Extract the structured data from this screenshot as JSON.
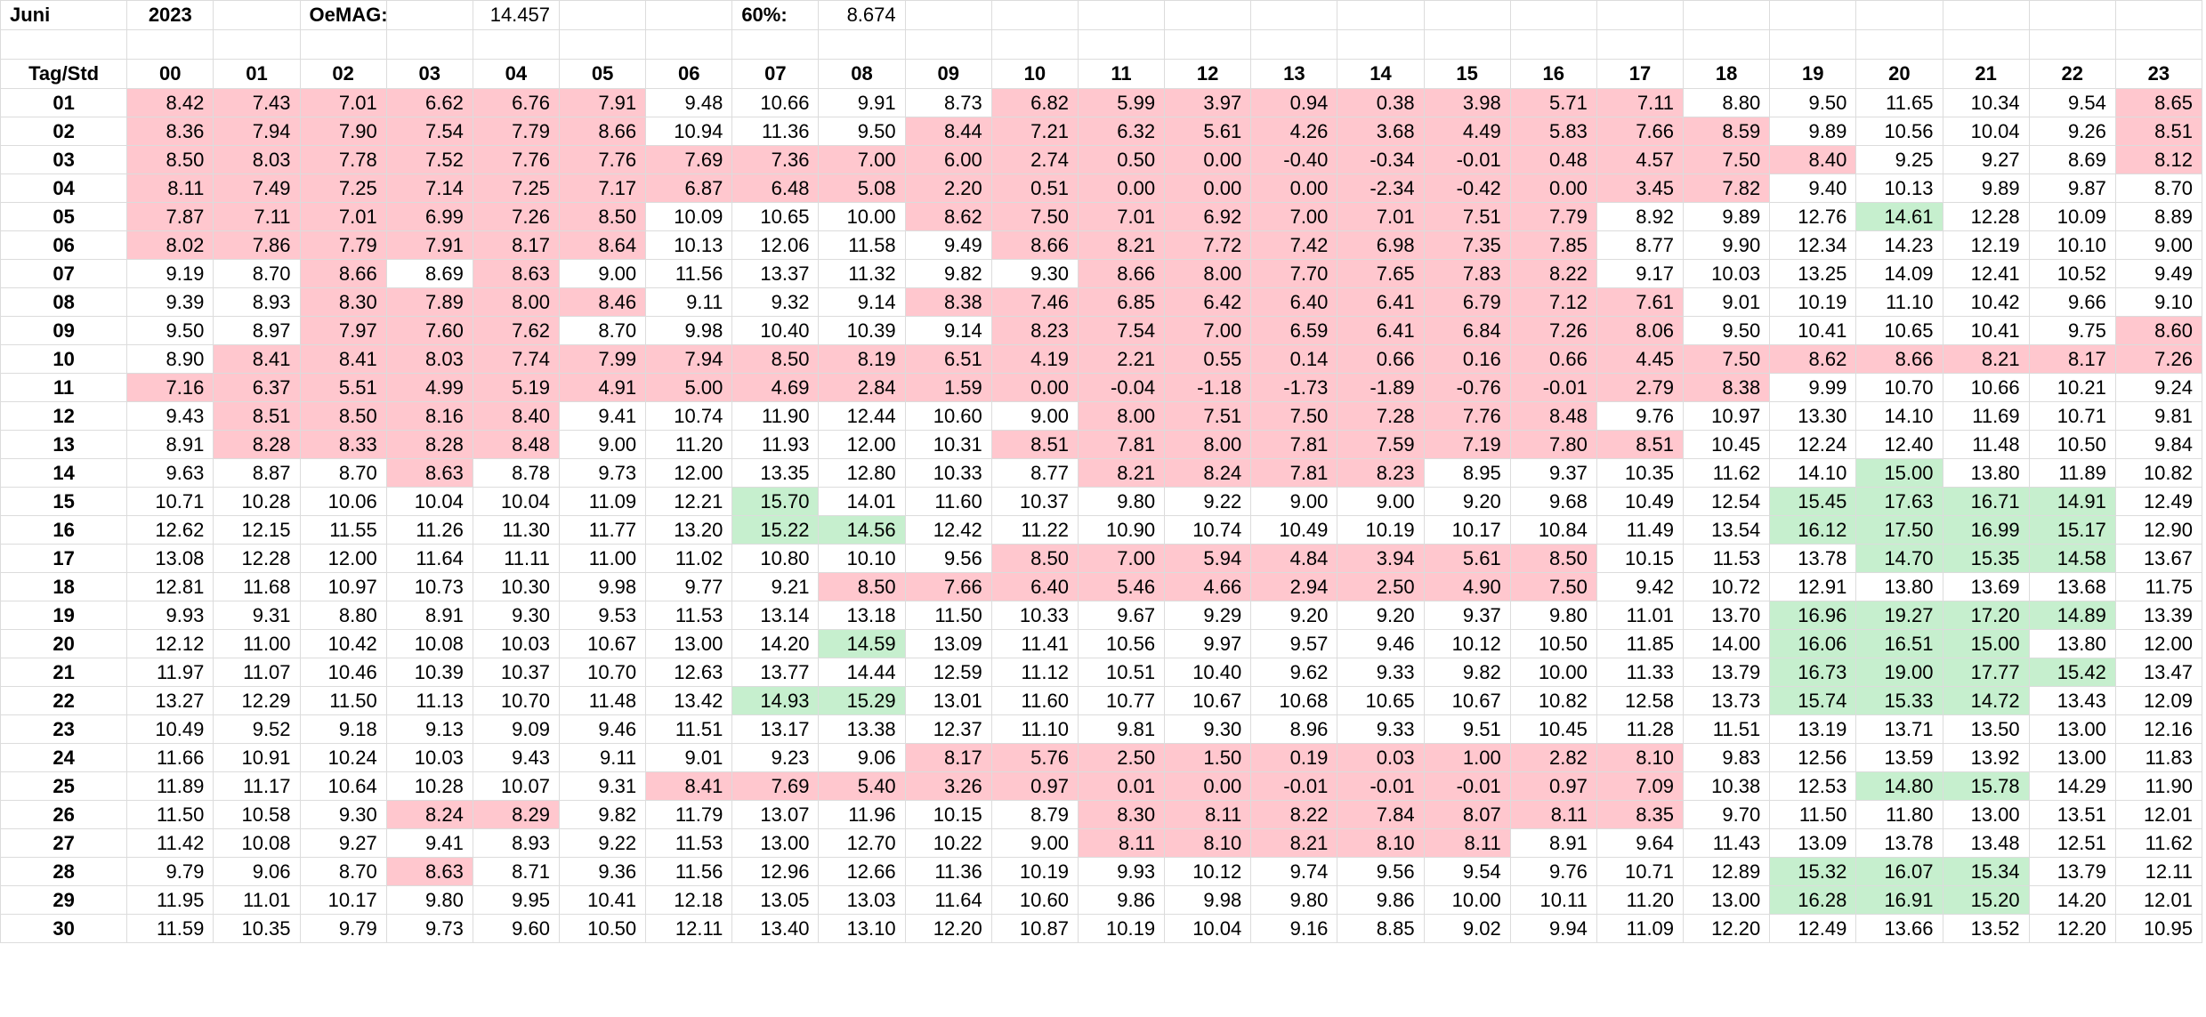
{
  "header": {
    "month": "Juni",
    "year": "2023",
    "oemag_label": "OeMAG:",
    "oemag_value": "14.457",
    "pct_label": "60%:",
    "pct_value": "8.674"
  },
  "colors": {
    "low_fill": "#ffc7ce",
    "low_text": "#9c0006",
    "high_fill": "#c6efce",
    "high_text": "#006100",
    "header_blue": "#1f6fbf",
    "title_red": "#e00000"
  },
  "corner_label": "Tag/Std",
  "hours": [
    "00",
    "01",
    "02",
    "03",
    "04",
    "05",
    "06",
    "07",
    "08",
    "09",
    "10",
    "11",
    "12",
    "13",
    "14",
    "15",
    "16",
    "17",
    "18",
    "19",
    "20",
    "21",
    "22",
    "23"
  ],
  "rows": [
    {
      "day": "01",
      "values": [
        "8.42",
        "7.43",
        "7.01",
        "6.62",
        "6.76",
        "7.91",
        "9.48",
        "10.66",
        "9.91",
        "8.73",
        "6.82",
        "5.99",
        "3.97",
        "0.94",
        "0.38",
        "3.98",
        "5.71",
        "7.11",
        "8.80",
        "9.50",
        "11.65",
        "10.34",
        "9.54",
        "8.65"
      ]
    },
    {
      "day": "02",
      "values": [
        "8.36",
        "7.94",
        "7.90",
        "7.54",
        "7.79",
        "8.66",
        "10.94",
        "11.36",
        "9.50",
        "8.44",
        "7.21",
        "6.32",
        "5.61",
        "4.26",
        "3.68",
        "4.49",
        "5.83",
        "7.66",
        "8.59",
        "9.89",
        "10.56",
        "10.04",
        "9.26",
        "8.51"
      ]
    },
    {
      "day": "03",
      "values": [
        "8.50",
        "8.03",
        "7.78",
        "7.52",
        "7.76",
        "7.76",
        "7.69",
        "7.36",
        "7.00",
        "6.00",
        "2.74",
        "0.50",
        "0.00",
        "-0.40",
        "-0.34",
        "-0.01",
        "0.48",
        "4.57",
        "7.50",
        "8.40",
        "9.25",
        "9.27",
        "8.69",
        "8.12"
      ]
    },
    {
      "day": "04",
      "values": [
        "8.11",
        "7.49",
        "7.25",
        "7.14",
        "7.25",
        "7.17",
        "6.87",
        "6.48",
        "5.08",
        "2.20",
        "0.51",
        "0.00",
        "0.00",
        "0.00",
        "-2.34",
        "-0.42",
        "0.00",
        "3.45",
        "7.82",
        "9.40",
        "10.13",
        "9.89",
        "9.87",
        "8.70"
      ]
    },
    {
      "day": "05",
      "values": [
        "7.87",
        "7.11",
        "7.01",
        "6.99",
        "7.26",
        "8.50",
        "10.09",
        "10.65",
        "10.00",
        "8.62",
        "7.50",
        "7.01",
        "6.92",
        "7.00",
        "7.01",
        "7.51",
        "7.79",
        "8.92",
        "9.89",
        "12.76",
        "14.61",
        "12.28",
        "10.09",
        "8.89"
      ]
    },
    {
      "day": "06",
      "values": [
        "8.02",
        "7.86",
        "7.79",
        "7.91",
        "8.17",
        "8.64",
        "10.13",
        "12.06",
        "11.58",
        "9.49",
        "8.66",
        "8.21",
        "7.72",
        "7.42",
        "6.98",
        "7.35",
        "7.85",
        "8.77",
        "9.90",
        "12.34",
        "14.23",
        "12.19",
        "10.10",
        "9.00"
      ]
    },
    {
      "day": "07",
      "values": [
        "9.19",
        "8.70",
        "8.66",
        "8.69",
        "8.63",
        "9.00",
        "11.56",
        "13.37",
        "11.32",
        "9.82",
        "9.30",
        "8.66",
        "8.00",
        "7.70",
        "7.65",
        "7.83",
        "8.22",
        "9.17",
        "10.03",
        "13.25",
        "14.09",
        "12.41",
        "10.52",
        "9.49"
      ]
    },
    {
      "day": "08",
      "values": [
        "9.39",
        "8.93",
        "8.30",
        "7.89",
        "8.00",
        "8.46",
        "9.11",
        "9.32",
        "9.14",
        "8.38",
        "7.46",
        "6.85",
        "6.42",
        "6.40",
        "6.41",
        "6.79",
        "7.12",
        "7.61",
        "9.01",
        "10.19",
        "11.10",
        "10.42",
        "9.66",
        "9.10"
      ]
    },
    {
      "day": "09",
      "values": [
        "9.50",
        "8.97",
        "7.97",
        "7.60",
        "7.62",
        "8.70",
        "9.98",
        "10.40",
        "10.39",
        "9.14",
        "8.23",
        "7.54",
        "7.00",
        "6.59",
        "6.41",
        "6.84",
        "7.26",
        "8.06",
        "9.50",
        "10.41",
        "10.65",
        "10.41",
        "9.75",
        "8.60"
      ]
    },
    {
      "day": "10",
      "values": [
        "8.90",
        "8.41",
        "8.41",
        "8.03",
        "7.74",
        "7.99",
        "7.94",
        "8.50",
        "8.19",
        "6.51",
        "4.19",
        "2.21",
        "0.55",
        "0.14",
        "0.66",
        "0.16",
        "0.66",
        "4.45",
        "7.50",
        "8.62",
        "8.66",
        "8.21",
        "8.17",
        "7.26"
      ]
    },
    {
      "day": "11",
      "values": [
        "7.16",
        "6.37",
        "5.51",
        "4.99",
        "5.19",
        "4.91",
        "5.00",
        "4.69",
        "2.84",
        "1.59",
        "0.00",
        "-0.04",
        "-1.18",
        "-1.73",
        "-1.89",
        "-0.76",
        "-0.01",
        "2.79",
        "8.38",
        "9.99",
        "10.70",
        "10.66",
        "10.21",
        "9.24"
      ]
    },
    {
      "day": "12",
      "values": [
        "9.43",
        "8.51",
        "8.50",
        "8.16",
        "8.40",
        "9.41",
        "10.74",
        "11.90",
        "12.44",
        "10.60",
        "9.00",
        "8.00",
        "7.51",
        "7.50",
        "7.28",
        "7.76",
        "8.48",
        "9.76",
        "10.97",
        "13.30",
        "14.10",
        "11.69",
        "10.71",
        "9.81"
      ]
    },
    {
      "day": "13",
      "values": [
        "8.91",
        "8.28",
        "8.33",
        "8.28",
        "8.48",
        "9.00",
        "11.20",
        "11.93",
        "12.00",
        "10.31",
        "8.51",
        "7.81",
        "8.00",
        "7.81",
        "7.59",
        "7.19",
        "7.80",
        "8.51",
        "10.45",
        "12.24",
        "12.40",
        "11.48",
        "10.50",
        "9.84"
      ]
    },
    {
      "day": "14",
      "values": [
        "9.63",
        "8.87",
        "8.70",
        "8.63",
        "8.78",
        "9.73",
        "12.00",
        "13.35",
        "12.80",
        "10.33",
        "8.77",
        "8.21",
        "8.24",
        "7.81",
        "8.23",
        "8.95",
        "9.37",
        "10.35",
        "11.62",
        "14.10",
        "15.00",
        "13.80",
        "11.89",
        "10.82"
      ]
    },
    {
      "day": "15",
      "values": [
        "10.71",
        "10.28",
        "10.06",
        "10.04",
        "10.04",
        "11.09",
        "12.21",
        "15.70",
        "14.01",
        "11.60",
        "10.37",
        "9.80",
        "9.22",
        "9.00",
        "9.00",
        "9.20",
        "9.68",
        "10.49",
        "12.54",
        "15.45",
        "17.63",
        "16.71",
        "14.91",
        "12.49"
      ]
    },
    {
      "day": "16",
      "values": [
        "12.62",
        "12.15",
        "11.55",
        "11.26",
        "11.30",
        "11.77",
        "13.20",
        "15.22",
        "14.56",
        "12.42",
        "11.22",
        "10.90",
        "10.74",
        "10.49",
        "10.19",
        "10.17",
        "10.84",
        "11.49",
        "13.54",
        "16.12",
        "17.50",
        "16.99",
        "15.17",
        "12.90"
      ]
    },
    {
      "day": "17",
      "values": [
        "13.08",
        "12.28",
        "12.00",
        "11.64",
        "11.11",
        "11.00",
        "11.02",
        "10.80",
        "10.10",
        "9.56",
        "8.50",
        "7.00",
        "5.94",
        "4.84",
        "3.94",
        "5.61",
        "8.50",
        "10.15",
        "11.53",
        "13.78",
        "14.70",
        "15.35",
        "14.58",
        "13.67"
      ]
    },
    {
      "day": "18",
      "values": [
        "12.81",
        "11.68",
        "10.97",
        "10.73",
        "10.30",
        "9.98",
        "9.77",
        "9.21",
        "8.50",
        "7.66",
        "6.40",
        "5.46",
        "4.66",
        "2.94",
        "2.50",
        "4.90",
        "7.50",
        "9.42",
        "10.72",
        "12.91",
        "13.80",
        "13.69",
        "13.68",
        "11.75"
      ]
    },
    {
      "day": "19",
      "values": [
        "9.93",
        "9.31",
        "8.80",
        "8.91",
        "9.30",
        "9.53",
        "11.53",
        "13.14",
        "13.18",
        "11.50",
        "10.33",
        "9.67",
        "9.29",
        "9.20",
        "9.20",
        "9.37",
        "9.80",
        "11.01",
        "13.70",
        "16.96",
        "19.27",
        "17.20",
        "14.89",
        "13.39"
      ]
    },
    {
      "day": "20",
      "values": [
        "12.12",
        "11.00",
        "10.42",
        "10.08",
        "10.03",
        "10.67",
        "13.00",
        "14.20",
        "14.59",
        "13.09",
        "11.41",
        "10.56",
        "9.97",
        "9.57",
        "9.46",
        "10.12",
        "10.50",
        "11.85",
        "14.00",
        "16.06",
        "16.51",
        "15.00",
        "13.80",
        "12.00"
      ]
    },
    {
      "day": "21",
      "values": [
        "11.97",
        "11.07",
        "10.46",
        "10.39",
        "10.37",
        "10.70",
        "12.63",
        "13.77",
        "14.44",
        "12.59",
        "11.12",
        "10.51",
        "10.40",
        "9.62",
        "9.33",
        "9.82",
        "10.00",
        "11.33",
        "13.79",
        "16.73",
        "19.00",
        "17.77",
        "15.42",
        "13.47"
      ]
    },
    {
      "day": "22",
      "values": [
        "13.27",
        "12.29",
        "11.50",
        "11.13",
        "10.70",
        "11.48",
        "13.42",
        "14.93",
        "15.29",
        "13.01",
        "11.60",
        "10.77",
        "10.67",
        "10.68",
        "10.65",
        "10.67",
        "10.82",
        "12.58",
        "13.73",
        "15.74",
        "15.33",
        "14.72",
        "13.43",
        "12.09"
      ]
    },
    {
      "day": "23",
      "values": [
        "10.49",
        "9.52",
        "9.18",
        "9.13",
        "9.09",
        "9.46",
        "11.51",
        "13.17",
        "13.38",
        "12.37",
        "11.10",
        "9.81",
        "9.30",
        "8.96",
        "9.33",
        "9.51",
        "10.45",
        "11.28",
        "11.51",
        "13.19",
        "13.71",
        "13.50",
        "13.00",
        "12.16"
      ]
    },
    {
      "day": "24",
      "values": [
        "11.66",
        "10.91",
        "10.24",
        "10.03",
        "9.43",
        "9.11",
        "9.01",
        "9.23",
        "9.06",
        "8.17",
        "5.76",
        "2.50",
        "1.50",
        "0.19",
        "0.03",
        "1.00",
        "2.82",
        "8.10",
        "9.83",
        "12.56",
        "13.59",
        "13.92",
        "13.00",
        "11.83"
      ]
    },
    {
      "day": "25",
      "values": [
        "11.89",
        "11.17",
        "10.64",
        "10.28",
        "10.07",
        "9.31",
        "8.41",
        "7.69",
        "5.40",
        "3.26",
        "0.97",
        "0.01",
        "0.00",
        "-0.01",
        "-0.01",
        "-0.01",
        "0.97",
        "7.09",
        "10.38",
        "12.53",
        "14.80",
        "15.78",
        "14.29",
        "11.90"
      ]
    },
    {
      "day": "26",
      "values": [
        "11.50",
        "10.58",
        "9.30",
        "8.24",
        "8.29",
        "9.82",
        "11.79",
        "13.07",
        "11.96",
        "10.15",
        "8.79",
        "8.30",
        "8.11",
        "8.22",
        "7.84",
        "8.07",
        "8.11",
        "8.35",
        "9.70",
        "11.50",
        "11.80",
        "13.00",
        "13.51",
        "12.01"
      ]
    },
    {
      "day": "27",
      "values": [
        "11.42",
        "10.08",
        "9.27",
        "9.41",
        "8.93",
        "9.22",
        "11.53",
        "13.00",
        "12.70",
        "10.22",
        "9.00",
        "8.11",
        "8.10",
        "8.21",
        "8.10",
        "8.11",
        "8.91",
        "9.64",
        "11.43",
        "13.09",
        "13.78",
        "13.48",
        "12.51",
        "11.62"
      ]
    },
    {
      "day": "28",
      "values": [
        "9.79",
        "9.06",
        "8.70",
        "8.63",
        "8.71",
        "9.36",
        "11.56",
        "12.96",
        "12.66",
        "11.36",
        "10.19",
        "9.93",
        "10.12",
        "9.74",
        "9.56",
        "9.54",
        "9.76",
        "10.71",
        "12.89",
        "15.32",
        "16.07",
        "15.34",
        "13.79",
        "12.11"
      ]
    },
    {
      "day": "29",
      "values": [
        "11.95",
        "11.01",
        "10.17",
        "9.80",
        "9.95",
        "10.41",
        "12.18",
        "13.05",
        "13.03",
        "11.64",
        "10.60",
        "9.86",
        "9.98",
        "9.80",
        "9.86",
        "10.00",
        "10.11",
        "11.20",
        "13.00",
        "16.28",
        "16.91",
        "15.20",
        "14.20",
        "12.01"
      ]
    },
    {
      "day": "30",
      "values": [
        "11.59",
        "10.35",
        "9.79",
        "9.73",
        "9.60",
        "10.50",
        "12.11",
        "13.40",
        "13.10",
        "12.20",
        "10.87",
        "10.19",
        "10.04",
        "9.16",
        "8.85",
        "9.02",
        "9.94",
        "11.09",
        "12.20",
        "12.49",
        "13.66",
        "13.52",
        "12.20",
        "10.95"
      ]
    }
  ],
  "highlights": {
    "low": {
      "01": [
        0,
        1,
        2,
        3,
        4,
        5,
        10,
        11,
        12,
        13,
        14,
        15,
        16,
        17,
        23
      ],
      "02": [
        0,
        1,
        2,
        3,
        4,
        5,
        9,
        10,
        11,
        12,
        13,
        14,
        15,
        16,
        17,
        18,
        23
      ],
      "03": [
        0,
        1,
        2,
        3,
        4,
        5,
        6,
        7,
        8,
        9,
        10,
        11,
        12,
        13,
        14,
        15,
        16,
        17,
        18,
        19,
        23
      ],
      "04": [
        0,
        1,
        2,
        3,
        4,
        5,
        6,
        7,
        8,
        9,
        10,
        11,
        12,
        13,
        14,
        15,
        16,
        17,
        18
      ],
      "05": [
        0,
        1,
        2,
        3,
        4,
        5,
        9,
        10,
        11,
        12,
        13,
        14,
        15,
        16
      ],
      "06": [
        0,
        1,
        2,
        3,
        4,
        5,
        10,
        11,
        12,
        13,
        14,
        15,
        16
      ],
      "07": [
        2,
        4,
        11,
        12,
        13,
        14,
        15,
        16
      ],
      "08": [
        2,
        3,
        4,
        5,
        9,
        10,
        11,
        12,
        13,
        14,
        15,
        16,
        17
      ],
      "09": [
        2,
        3,
        4,
        10,
        11,
        12,
        13,
        14,
        15,
        16,
        17,
        23
      ],
      "10": [
        1,
        2,
        3,
        4,
        5,
        6,
        7,
        8,
        9,
        10,
        11,
        12,
        13,
        14,
        15,
        16,
        17,
        18,
        19,
        20,
        21,
        22,
        23
      ],
      "11": [
        0,
        1,
        2,
        3,
        4,
        5,
        6,
        7,
        8,
        9,
        10,
        11,
        12,
        13,
        14,
        15,
        16,
        17,
        18
      ],
      "12": [
        1,
        2,
        3,
        4,
        11,
        12,
        13,
        14,
        15,
        16
      ],
      "13": [
        1,
        2,
        3,
        4,
        10,
        11,
        12,
        13,
        14,
        15,
        16,
        17
      ],
      "14": [
        3,
        11,
        12,
        13,
        14
      ],
      "17": [
        10,
        11,
        12,
        13,
        14,
        15,
        16
      ],
      "18": [
        8,
        9,
        10,
        11,
        12,
        13,
        14,
        15,
        16
      ],
      "24": [
        9,
        10,
        11,
        12,
        13,
        14,
        15,
        16,
        17
      ],
      "25": [
        6,
        7,
        8,
        9,
        10,
        11,
        12,
        13,
        14,
        15,
        16,
        17
      ],
      "26": [
        3,
        4,
        11,
        12,
        13,
        14,
        15,
        16,
        17
      ],
      "27": [
        11,
        12,
        13,
        14,
        15
      ],
      "28": [
        3
      ]
    },
    "high": {
      "05": [
        20
      ],
      "14": [
        20
      ],
      "15": [
        7,
        19,
        20,
        21,
        22
      ],
      "16": [
        7,
        8,
        19,
        20,
        21,
        22
      ],
      "17": [
        20,
        21,
        22
      ],
      "19": [
        19,
        20,
        21,
        22
      ],
      "20": [
        8,
        19,
        20,
        21
      ],
      "21": [
        19,
        20,
        21,
        22
      ],
      "22": [
        7,
        8,
        19,
        20,
        21
      ],
      "25": [
        20,
        21
      ],
      "28": [
        19,
        20,
        21
      ],
      "29": [
        19,
        20,
        21
      ]
    }
  }
}
